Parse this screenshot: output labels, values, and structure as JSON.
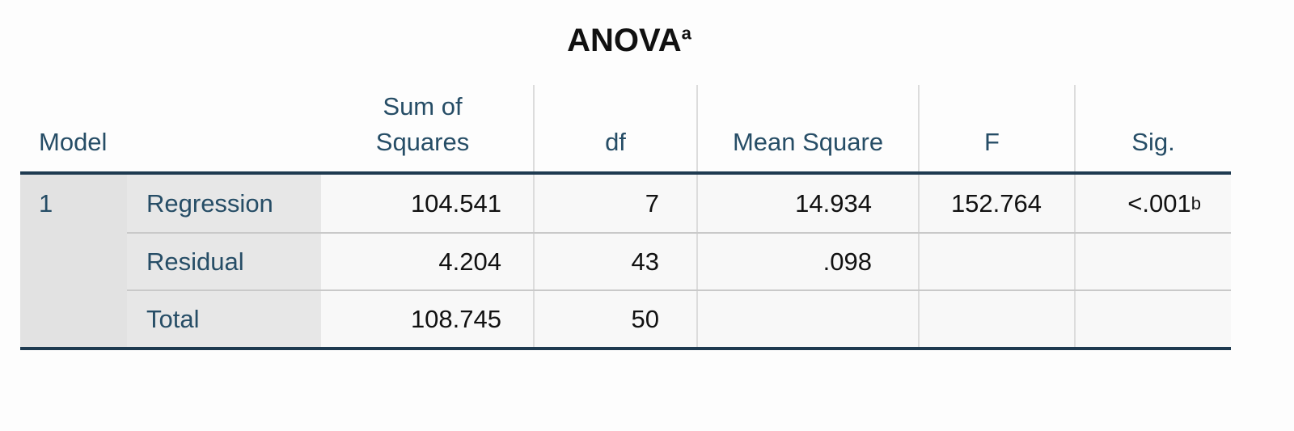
{
  "title": {
    "text": "ANOVA",
    "footnote_marker": "a"
  },
  "table": {
    "headers": [
      "Model",
      "Sum of Squares",
      "df",
      "Mean Square",
      "F",
      "Sig."
    ],
    "model": "1",
    "rows": [
      [
        "Regression",
        "104.541",
        "7",
        "14.934",
        "152.764",
        "<.001"
      ],
      [
        "Residual",
        "4.204",
        "43",
        ".098"
      ],
      [
        "Total",
        "108.745",
        "50"
      ]
    ],
    "sig_footnote_marker": "b"
  }
}
